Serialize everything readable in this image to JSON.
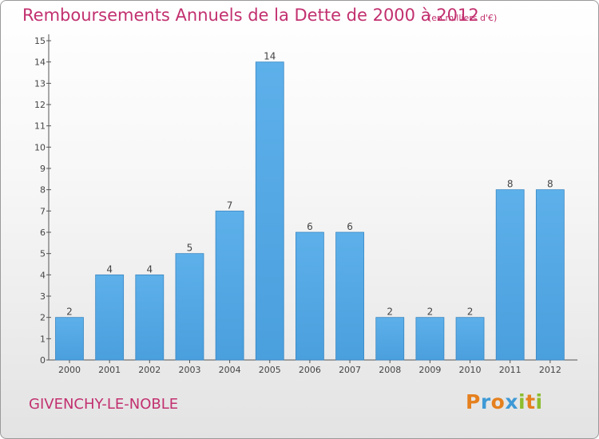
{
  "chart_data": {
    "type": "bar",
    "title": "Remboursements Annuels de la Dette de 2000 à 2012",
    "subtitle": "(en milliers d'€)",
    "categories": [
      "2000",
      "2001",
      "2002",
      "2003",
      "2004",
      "2005",
      "2006",
      "2007",
      "2008",
      "2009",
      "2010",
      "2011",
      "2012"
    ],
    "values": [
      2,
      4,
      4,
      5,
      7,
      14,
      6,
      6,
      2,
      2,
      2,
      8,
      8
    ],
    "ylim": [
      0,
      15
    ],
    "yticks": [
      0,
      1,
      2,
      3,
      4,
      5,
      6,
      7,
      8,
      9,
      10,
      11,
      12,
      13,
      14,
      15
    ],
    "xlabel": "",
    "ylabel": "",
    "grid": false,
    "bar_color": "#4a9fdd",
    "title_color": "#c2306f"
  },
  "commune_name": "GIVENCHY-LE-NOBLE",
  "logo": {
    "text": "Proxiti",
    "letters": [
      "P",
      "r",
      "o",
      "x",
      "i",
      "t",
      "i"
    ],
    "colors": [
      "#e5801e",
      "#3f9ad6",
      "#e5801e",
      "#3f9ad6",
      "#8cbd2e",
      "#e5801e",
      "#8cbd2e"
    ]
  }
}
